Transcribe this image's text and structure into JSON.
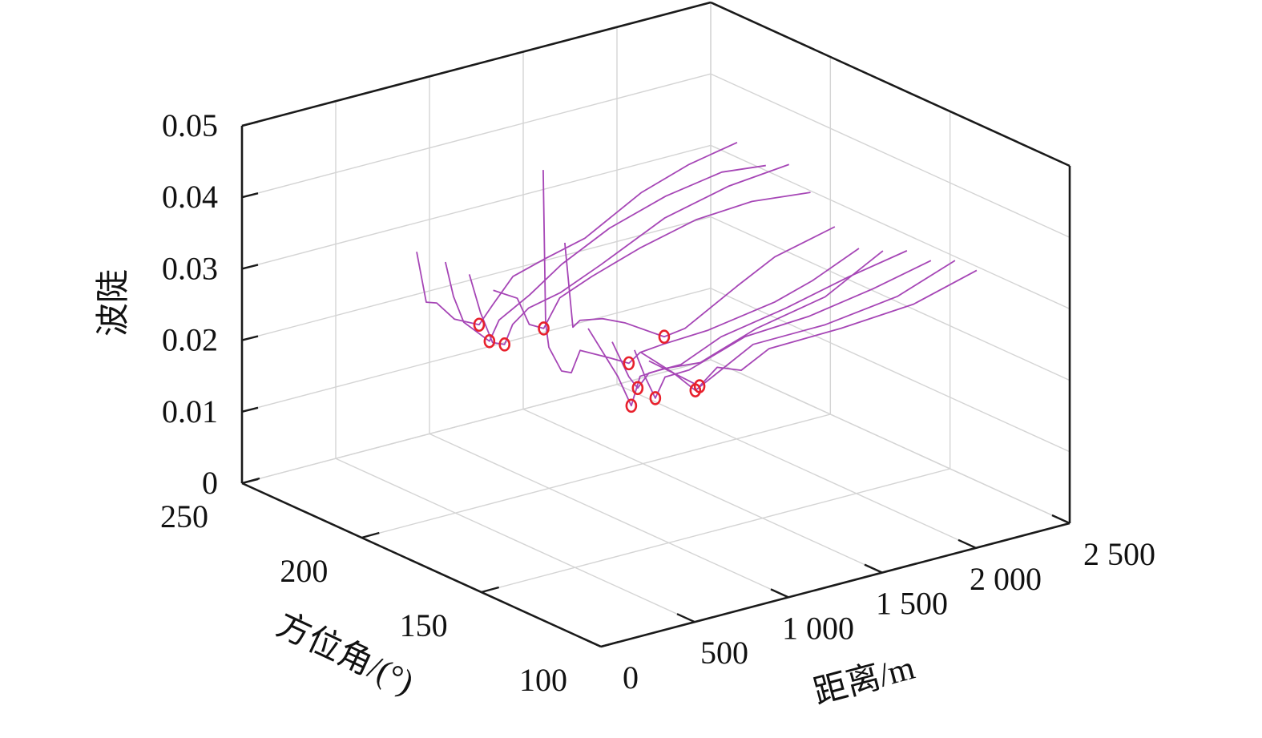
{
  "chart_data": {
    "type": "line3d",
    "title": "",
    "xlabel": "距离/m",
    "ylabel": "方位角/(°)",
    "zlabel": "波陡",
    "xlim": [
      0,
      2500
    ],
    "ylim": [
      100,
      250
    ],
    "zlim": [
      0,
      0.05
    ],
    "grid": true,
    "x_ticks": {
      "values": [
        0,
        500,
        1000,
        1500,
        2000,
        2500
      ],
      "labels": [
        "0",
        "500",
        "1 000",
        "1 500",
        "2 000",
        "2 500"
      ]
    },
    "y_ticks": {
      "values": [
        250,
        200,
        150,
        100
      ],
      "labels": [
        "250",
        "200",
        "150",
        "100"
      ]
    },
    "z_ticks": {
      "values": [
        0,
        0.01,
        0.02,
        0.03,
        0.04,
        0.05
      ],
      "labels": [
        "0",
        "0.01",
        "0.02",
        "0.03",
        "0.04",
        "0.05"
      ]
    },
    "colors": {
      "line": "#a646b6",
      "marker": "#e8202c"
    },
    "marker_symbol": "o",
    "series": [
      {
        "azimuth": 177,
        "distance": [
          0,
          51,
          107,
          201,
          333,
          406,
          513,
          684,
          897,
          1197,
          1453,
          1709
        ],
        "steepness": [
          0.0435,
          0.0361,
          0.0356,
          0.0327,
          0.031,
          0.0333,
          0.0365,
          0.0378,
          0.0392,
          0.0435,
          0.0457,
          0.047
        ],
        "min_index": 4
      },
      {
        "azimuth": 165,
        "distance": [
          0,
          43,
          98,
          235,
          286,
          449,
          620,
          876,
          1175,
          1474,
          1709
        ],
        "steepness": [
          0.0439,
          0.0388,
          0.0348,
          0.0312,
          0.0338,
          0.0362,
          0.0393,
          0.0426,
          0.045,
          0.0463,
          0.0456
        ],
        "min_index": 3
      },
      {
        "azimuth": 155,
        "distance": [
          0,
          60,
          124,
          188,
          231,
          316,
          487,
          701,
          1043,
          1385,
          1705
        ],
        "steepness": [
          0.0437,
          0.0379,
          0.0333,
          0.0326,
          0.0351,
          0.0368,
          0.0378,
          0.0402,
          0.0444,
          0.0465,
          0.0473
        ],
        "min_index": 3
      },
      {
        "azimuth": 145,
        "distance": [
          0,
          128,
          192,
          269,
          355,
          526,
          782,
          1081,
          1380,
          1692
        ],
        "steepness": [
          0.043,
          0.041,
          0.0369,
          0.0358,
          0.0395,
          0.0413,
          0.0435,
          0.0454,
          0.0459,
          0.045
        ],
        "min_index": 3
      },
      {
        "azimuth": 125,
        "distance": [
          11,
          24,
          41,
          109,
          161,
          208,
          370,
          468,
          528,
          648,
          887,
          1246,
          1447,
          1695
        ],
        "steepness": [
          0.0628,
          0.0413,
          0.0378,
          0.034,
          0.0334,
          0.0362,
          0.034,
          0.0326,
          0.0337,
          0.034,
          0.0343,
          0.0358,
          0.0374,
          0.0402
        ],
        "min_index": 7
      },
      {
        "azimuth": 118,
        "distance": [
          37,
          80,
          118,
          238,
          357,
          567,
          678,
          956,
          1157,
          1477
        ],
        "steepness": [
          0.0535,
          0.0414,
          0.0421,
          0.0415,
          0.0401,
          0.0367,
          0.0371,
          0.0411,
          0.0438,
          0.0458
        ],
        "min_index": 5
      },
      {
        "azimuth": 112,
        "distance": [
          85,
          243,
          315,
          362,
          482,
          683,
          982,
          1349,
          1657
        ],
        "steepness": [
          0.0421,
          0.0343,
          0.0297,
          0.0335,
          0.0337,
          0.0332,
          0.0359,
          0.0378,
          0.0421
        ],
        "min_index": 2
      },
      {
        "azimuth": 108,
        "distance": [
          162,
          251,
          298,
          358,
          529,
          743,
          1085,
          1426,
          1734
        ],
        "steepness": [
          0.0403,
          0.0348,
          0.0329,
          0.0346,
          0.0346,
          0.037,
          0.0386,
          0.0407,
          0.0422
        ],
        "min_index": 2
      },
      {
        "azimuth": 104,
        "distance": [
          230,
          286,
          341,
          393,
          521,
          820,
          1162,
          1504,
          1811
        ],
        "steepness": [
          0.0393,
          0.0352,
          0.0318,
          0.0344,
          0.0345,
          0.0371,
          0.0376,
          0.0391,
          0.0409
        ],
        "min_index": 2
      },
      {
        "azimuth": 102,
        "distance": [
          239,
          410,
          529,
          623,
          837,
          1222,
          1606,
          1914
        ],
        "steepness": [
          0.0392,
          0.0352,
          0.0319,
          0.0332,
          0.0362,
          0.0363,
          0.0376,
          0.0405
        ],
        "min_index": 2
      },
      {
        "azimuth": 100,
        "distance": [
          256,
          427,
          526,
          620,
          748,
          897,
          1282,
          1667,
          2004
        ],
        "steepness": [
          0.0382,
          0.0348,
          0.0328,
          0.0348,
          0.0335,
          0.0355,
          0.0357,
          0.0364,
          0.0388
        ],
        "min_index": 2
      }
    ]
  }
}
